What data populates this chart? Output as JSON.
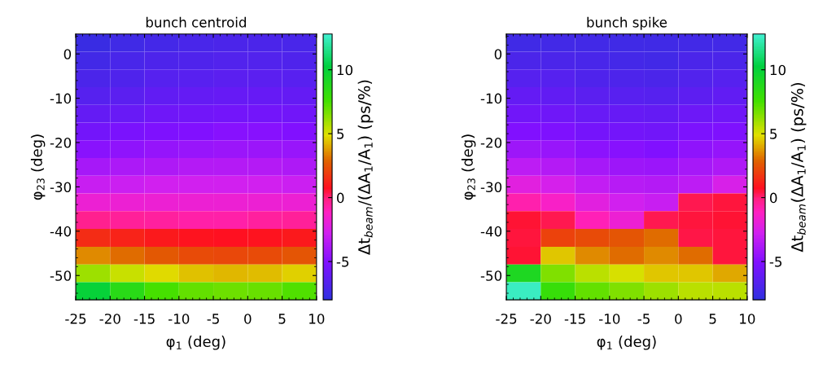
{
  "chart_data": [
    {
      "type": "heatmap",
      "title": "bunch centroid",
      "xlabel": "φ$_{1}$ (deg)",
      "ylabel": "φ$_{23}$ (deg)",
      "clabel": "Δt$_{beam}$/(ΔA$_{1}$/A$_{1}$) (ps/%)",
      "x": [
        -22.5,
        -17.5,
        -12.5,
        -7.5,
        -2.5,
        2.5,
        7.5
      ],
      "y": [
        2.5,
        -1.5,
        -5.5,
        -9.5,
        -13.5,
        -17.5,
        -21.5,
        -25.5,
        -29.5,
        -33.5,
        -37.5,
        -41.5,
        -45.5,
        -49.5,
        -53.5
      ],
      "xlim": [
        -25,
        10
      ],
      "ylim": [
        -55.5,
        4.5
      ],
      "xticks": [
        -25,
        -20,
        -15,
        -10,
        -5,
        0,
        5,
        10
      ],
      "yticks": [
        -50,
        -40,
        -30,
        -20,
        -10,
        0
      ],
      "clim": [
        -8,
        12.8
      ],
      "cticks": [
        -5,
        0,
        5,
        10
      ],
      "cells": [
        [
          -7.6,
          -7.4,
          -7.2,
          -7.1,
          -7.0,
          -7.0,
          -7.1
        ],
        [
          -7.3,
          -7.1,
          -6.9,
          -6.8,
          -6.7,
          -6.7,
          -6.8
        ],
        [
          -7.0,
          -6.8,
          -6.6,
          -6.5,
          -6.4,
          -6.4,
          -6.5
        ],
        [
          -6.6,
          -6.4,
          -6.2,
          -6.1,
          -6.0,
          -6.0,
          -6.1
        ],
        [
          -6.1,
          -5.9,
          -5.7,
          -5.6,
          -5.5,
          -5.5,
          -5.6
        ],
        [
          -5.5,
          -5.3,
          -5.1,
          -5.0,
          -4.9,
          -4.9,
          -5.0
        ],
        [
          -4.8,
          -4.6,
          -4.5,
          -4.4,
          -4.3,
          -4.3,
          -4.4
        ],
        [
          -4.0,
          -3.8,
          -3.7,
          -3.6,
          -3.6,
          -3.6,
          -3.7
        ],
        [
          -3.0,
          -2.9,
          -2.8,
          -2.8,
          -2.8,
          -2.8,
          -2.9
        ],
        [
          -1.8,
          -1.8,
          -1.8,
          -1.8,
          -1.8,
          -1.8,
          -1.8
        ],
        [
          -0.3,
          -0.5,
          -0.6,
          -0.7,
          -0.7,
          -0.6,
          -0.5
        ],
        [
          1.5,
          1.2,
          1.0,
          0.8,
          0.7,
          0.8,
          1.0
        ],
        [
          3.5,
          3.0,
          2.6,
          2.3,
          2.2,
          2.3,
          2.5
        ],
        [
          6.0,
          5.3,
          4.8,
          4.4,
          4.2,
          4.3,
          4.6
        ],
        [
          10.0,
          8.5,
          7.5,
          7.0,
          6.8,
          6.9,
          7.3
        ]
      ]
    },
    {
      "type": "heatmap",
      "title": "bunch spike",
      "xlabel": "φ$_{1}$ (deg)",
      "ylabel": "φ$_{23}$ (deg)",
      "clabel": "Δt$_{beam}$(ΔA$_{1}$/A$_{1}$) (ps/%)",
      "x": [
        -22.5,
        -17.5,
        -12.5,
        -7.5,
        -2.5,
        2.5,
        7.5
      ],
      "y": [
        2.5,
        -1.5,
        -5.5,
        -9.5,
        -13.5,
        -17.5,
        -21.5,
        -25.5,
        -29.5,
        -33.5,
        -37.5,
        -41.5,
        -45.5,
        -49.5,
        -53.5
      ],
      "xlim": [
        -25,
        10
      ],
      "ylim": [
        -55.5,
        4.5
      ],
      "xticks": [
        -25,
        -20,
        -15,
        -10,
        -5,
        0,
        5,
        10
      ],
      "yticks": [
        -50,
        -40,
        -30,
        -20,
        -10,
        0
      ],
      "clim": [
        -8,
        12.8
      ],
      "cticks": [
        -5,
        0,
        5,
        10
      ],
      "cells": [
        [
          -7.4,
          -7.3,
          -7.3,
          -7.4,
          -7.4,
          -7.3,
          -7.3
        ],
        [
          -7.0,
          -7.0,
          -7.1,
          -7.2,
          -7.3,
          -7.0,
          -7.0
        ],
        [
          -6.6,
          -6.6,
          -6.8,
          -6.9,
          -7.0,
          -6.7,
          -6.6
        ],
        [
          -6.1,
          -6.2,
          -6.4,
          -6.5,
          -6.6,
          -6.3,
          -6.2
        ],
        [
          -5.6,
          -5.7,
          -5.9,
          -6.0,
          -6.1,
          -5.8,
          -5.7
        ],
        [
          -5.0,
          -5.1,
          -5.4,
          -5.5,
          -5.6,
          -5.2,
          -5.1
        ],
        [
          -4.2,
          -4.4,
          -4.7,
          -4.9,
          -5.0,
          -4.6,
          -4.5
        ],
        [
          -3.3,
          -3.6,
          -4.0,
          -4.2,
          -4.3,
          -4.0,
          -3.7
        ],
        [
          -2.2,
          -2.6,
          -3.2,
          -3.5,
          -3.6,
          -3.3,
          -2.5
        ],
        [
          -0.8,
          -1.4,
          -2.2,
          -2.8,
          -3.0,
          0.3,
          0.5
        ],
        [
          0.6,
          0.3,
          -1.0,
          -1.8,
          0.3,
          0.5,
          0.6
        ],
        [
          0.5,
          2.0,
          2.3,
          2.5,
          3.0,
          0.4,
          0.5
        ],
        [
          0.6,
          4.5,
          3.5,
          3.0,
          3.5,
          3.0,
          0.5
        ],
        [
          9.0,
          6.5,
          5.5,
          5.0,
          4.5,
          4.5,
          4.0
        ],
        [
          12.5,
          8.0,
          7.0,
          6.5,
          6.0,
          5.5,
          5.5
        ]
      ]
    }
  ]
}
